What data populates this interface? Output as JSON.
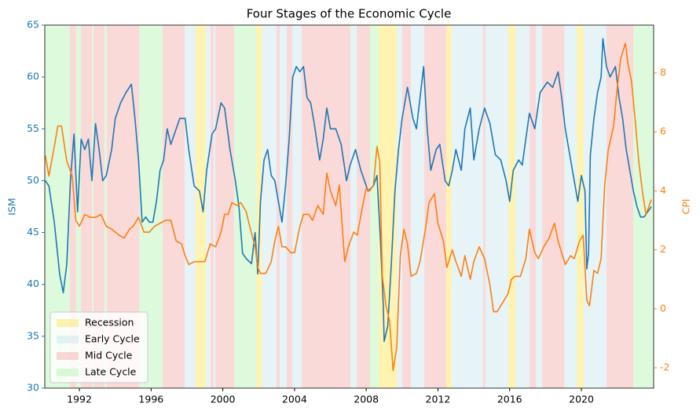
{
  "chart_data": {
    "type": "line",
    "title": "Four Stages of the Economic Cycle",
    "ylabel": "ISM",
    "y2label": "CPI",
    "xlim": [
      1990.07,
      2024.03
    ],
    "xticks": [
      1992,
      1996,
      2000,
      2004,
      2008,
      2012,
      2016,
      2020
    ],
    "ylim": [
      30,
      65
    ],
    "yticks": [
      30,
      35,
      40,
      45,
      50,
      55,
      60,
      65
    ],
    "y2lim": [
      -2.69,
      9.62
    ],
    "y2ticks": [
      -2,
      0,
      2,
      4,
      6,
      8
    ],
    "legend": "lower left",
    "shade_alpha": 0.3,
    "phases": [
      {
        "name": "Recession",
        "color": "#ffd700",
        "spans": [
          [
            1998.48,
            1999.05
          ],
          [
            2001.86,
            2002.17
          ],
          [
            2008.69,
            2009.7
          ],
          [
            2012.46,
            2012.77
          ],
          [
            2015.92,
            2016.32
          ],
          [
            2019.74,
            2020.13
          ]
        ]
      },
      {
        "name": "Early Cycle",
        "color": "#add8e6",
        "spans": [
          [
            1997.87,
            1998.48
          ],
          [
            1999.05,
            1999.32
          ],
          [
            1999.49,
            1999.58
          ],
          [
            2002.17,
            2003.0
          ],
          [
            2003.18,
            2003.57
          ],
          [
            2003.88,
            2004.4
          ],
          [
            2007.12,
            2007.47
          ],
          [
            2009.7,
            2010.01
          ],
          [
            2010.49,
            2011.24
          ],
          [
            2012.77,
            2014.52
          ],
          [
            2014.65,
            2015.92
          ],
          [
            2016.32,
            2017.11
          ],
          [
            2017.46,
            2017.81
          ],
          [
            2019.04,
            2019.74
          ],
          [
            2020.13,
            2021.4
          ]
        ]
      },
      {
        "name": "Mid Cycle",
        "color": "#f08080",
        "spans": [
          [
            1991.47,
            1991.82
          ],
          [
            1992.09,
            1992.7
          ],
          [
            1992.79,
            1993.4
          ],
          [
            1993.53,
            1995.33
          ],
          [
            1996.64,
            1997.87
          ],
          [
            1999.32,
            1999.49
          ],
          [
            1999.58,
            2000.63
          ],
          [
            2003.0,
            2003.18
          ],
          [
            2003.57,
            2003.88
          ],
          [
            2004.4,
            2007.12
          ],
          [
            2007.47,
            2008.21
          ],
          [
            2010.01,
            2010.49
          ],
          [
            2011.24,
            2012.46
          ],
          [
            2014.52,
            2014.65
          ],
          [
            2017.11,
            2017.46
          ],
          [
            2017.81,
            2019.04
          ],
          [
            2021.4,
            2022.89
          ]
        ]
      },
      {
        "name": "Late Cycle",
        "color": "#90ee90",
        "spans": [
          [
            1990.07,
            1991.47
          ],
          [
            1991.82,
            1992.09
          ],
          [
            1992.7,
            1992.79
          ],
          [
            1993.4,
            1993.53
          ],
          [
            1995.33,
            1996.64
          ],
          [
            2000.63,
            2001.86
          ],
          [
            2008.21,
            2008.69
          ],
          [
            2022.89,
            2024.03
          ]
        ]
      }
    ],
    "series": [
      {
        "name": "ISM",
        "color": "#1f77b4",
        "x": [
          1990.1,
          1990.3,
          1990.6,
          1990.9,
          1991.1,
          1991.3,
          1991.5,
          1991.7,
          1991.9,
          1992.1,
          1992.3,
          1992.5,
          1992.7,
          1992.9,
          1993.1,
          1993.3,
          1993.5,
          1993.8,
          1994.0,
          1994.3,
          1994.6,
          1994.9,
          1995.1,
          1995.3,
          1995.5,
          1995.7,
          1995.9,
          1996.1,
          1996.3,
          1996.5,
          1996.7,
          1996.9,
          1997.1,
          1997.4,
          1997.6,
          1997.9,
          1998.1,
          1998.4,
          1998.7,
          1998.9,
          1999.1,
          1999.4,
          1999.6,
          1999.9,
          2000.1,
          2000.4,
          2000.7,
          2000.9,
          2001.1,
          2001.3,
          2001.6,
          2001.8,
          2001.95,
          2002.1,
          2002.3,
          2002.5,
          2002.7,
          2002.9,
          2003.1,
          2003.3,
          2003.5,
          2003.7,
          2003.9,
          2004.1,
          2004.3,
          2004.5,
          2004.7,
          2004.9,
          2005.1,
          2005.4,
          2005.6,
          2005.8,
          2006.0,
          2006.3,
          2006.6,
          2006.9,
          2007.1,
          2007.4,
          2007.7,
          2007.9,
          2008.1,
          2008.4,
          2008.6,
          2008.8,
          2008.95,
          2009.0,
          2009.2,
          2009.4,
          2009.6,
          2009.8,
          2010.0,
          2010.3,
          2010.6,
          2010.8,
          2011.0,
          2011.2,
          2011.4,
          2011.6,
          2011.9,
          2012.1,
          2012.4,
          2012.6,
          2012.8,
          2013.0,
          2013.3,
          2013.5,
          2013.8,
          2014.0,
          2014.3,
          2014.6,
          2014.9,
          2015.2,
          2015.5,
          2015.8,
          2016.0,
          2016.2,
          2016.5,
          2016.7,
          2016.9,
          2017.1,
          2017.4,
          2017.7,
          2017.9,
          2018.1,
          2018.4,
          2018.7,
          2018.9,
          2019.1,
          2019.4,
          2019.6,
          2019.8,
          2020.0,
          2020.2,
          2020.3,
          2020.4,
          2020.5,
          2020.7,
          2020.9,
          2021.1,
          2021.2,
          2021.4,
          2021.6,
          2021.9,
          2022.1,
          2022.3,
          2022.5,
          2022.7,
          2022.9,
          2023.1,
          2023.3,
          2023.5,
          2023.7,
          2023.9
        ],
        "values": [
          50,
          49.5,
          46,
          41,
          39.2,
          42,
          50,
          54.5,
          47,
          54,
          53,
          54,
          50,
          55.5,
          53,
          50,
          50.5,
          53,
          56,
          57.5,
          58.5,
          59.3,
          56,
          52,
          46,
          46.5,
          46,
          46,
          48,
          51,
          52,
          55,
          53.5,
          55,
          56,
          56,
          53,
          49.5,
          49,
          47,
          51,
          54.5,
          55,
          57.5,
          57,
          53,
          50,
          47.5,
          43,
          42.5,
          42,
          45,
          41,
          48,
          52,
          53,
          50.5,
          50,
          48,
          46,
          49.5,
          54,
          60,
          61,
          60.5,
          61,
          58,
          57.5,
          55.5,
          52,
          54,
          57,
          55,
          55,
          53.5,
          50,
          51.5,
          53,
          51,
          50,
          49,
          49.5,
          50.5,
          44,
          38,
          34.5,
          36,
          42,
          49,
          53,
          56,
          59,
          56,
          55,
          58,
          61,
          55,
          51,
          53,
          53.5,
          50,
          49.5,
          51,
          53,
          51,
          55,
          57,
          52,
          55,
          57,
          55.5,
          52.5,
          52,
          50,
          48,
          51,
          52,
          51.5,
          54,
          56.5,
          55,
          58.5,
          59,
          59.5,
          59,
          60.5,
          58,
          55,
          52,
          50,
          48,
          50.5,
          49,
          41.5,
          43,
          52.5,
          56,
          58.5,
          60,
          63.7,
          61,
          60,
          61,
          58,
          56,
          53,
          51,
          49,
          47.5,
          46.5,
          46.5,
          47,
          47.5
        ]
      },
      {
        "name": "CPI",
        "color": "#ff7f0e",
        "axis": "y2",
        "x": [
          1990.1,
          1990.3,
          1990.6,
          1990.8,
          1991.0,
          1991.3,
          1991.6,
          1991.8,
          1992.0,
          1992.3,
          1992.6,
          1992.9,
          1993.2,
          1993.5,
          1993.8,
          1994.2,
          1994.5,
          1994.8,
          1995.0,
          1995.3,
          1995.6,
          1995.9,
          1996.2,
          1996.5,
          1996.8,
          1997.1,
          1997.4,
          1997.7,
          1997.9,
          1998.1,
          1998.4,
          1998.7,
          1999.0,
          1999.3,
          1999.6,
          1999.9,
          2000.1,
          2000.3,
          2000.5,
          2000.8,
          2001.0,
          2001.3,
          2001.5,
          2001.8,
          2001.95,
          2002.1,
          2002.4,
          2002.7,
          2002.9,
          2003.1,
          2003.3,
          2003.5,
          2003.8,
          2004.0,
          2004.3,
          2004.5,
          2004.8,
          2005.0,
          2005.3,
          2005.6,
          2005.8,
          2006.0,
          2006.3,
          2006.5,
          2006.8,
          2007.0,
          2007.3,
          2007.5,
          2007.8,
          2008.0,
          2008.2,
          2008.4,
          2008.6,
          2008.75,
          2008.9,
          2009.1,
          2009.3,
          2009.5,
          2009.7,
          2009.9,
          2010.1,
          2010.3,
          2010.5,
          2010.8,
          2011.0,
          2011.3,
          2011.5,
          2011.8,
          2012.0,
          2012.3,
          2012.5,
          2012.8,
          2013.0,
          2013.3,
          2013.5,
          2013.8,
          2014.0,
          2014.3,
          2014.6,
          2014.9,
          2015.1,
          2015.3,
          2015.6,
          2015.9,
          2016.1,
          2016.3,
          2016.6,
          2016.9,
          2017.1,
          2017.4,
          2017.6,
          2017.9,
          2018.2,
          2018.5,
          2018.7,
          2018.9,
          2019.1,
          2019.4,
          2019.6,
          2019.9,
          2020.1,
          2020.3,
          2020.45,
          2020.7,
          2020.9,
          2021.1,
          2021.3,
          2021.5,
          2021.8,
          2022.0,
          2022.2,
          2022.45,
          2022.6,
          2022.8,
          2023.0,
          2023.2,
          2023.4,
          2023.6,
          2023.9
        ],
        "values": [
          5.2,
          4.5,
          5.5,
          6.2,
          6.2,
          5,
          4.5,
          3,
          2.8,
          3.2,
          3.1,
          3.1,
          3.2,
          2.8,
          2.7,
          2.5,
          2.4,
          2.7,
          2.8,
          3.1,
          2.6,
          2.6,
          2.8,
          2.9,
          3.0,
          3.0,
          2.3,
          2.2,
          1.8,
          1.5,
          1.6,
          1.6,
          1.6,
          2.2,
          2.1,
          2.6,
          3.2,
          3.2,
          3.6,
          3.5,
          3.6,
          3.3,
          2.8,
          2.1,
          1.4,
          1.2,
          1.2,
          1.6,
          2.3,
          2.8,
          2.1,
          2.1,
          1.9,
          1.9,
          2.8,
          3.2,
          3.2,
          3.0,
          3.5,
          3.2,
          4.6,
          4.0,
          3.5,
          4.2,
          1.6,
          2.1,
          2.6,
          2.5,
          3.5,
          4.1,
          4.0,
          4.2,
          5.5,
          5.0,
          1.1,
          0.1,
          -0.4,
          -2.1,
          -1.3,
          1.8,
          2.7,
          2.2,
          1.1,
          1.2,
          1.6,
          2.7,
          3.6,
          3.9,
          2.9,
          2.3,
          1.4,
          2.0,
          1.6,
          1.1,
          1.8,
          1.0,
          1.6,
          2.1,
          1.7,
          0.8,
          -0.1,
          -0.1,
          0.2,
          0.5,
          1.0,
          1.1,
          1.1,
          1.7,
          2.7,
          1.9,
          1.7,
          2.1,
          2.4,
          2.9,
          2.3,
          1.9,
          1.5,
          1.8,
          1.7,
          2.3,
          2.5,
          0.3,
          0.1,
          1.3,
          1.2,
          1.7,
          4.2,
          5.4,
          6.2,
          7.5,
          8.5,
          9.0,
          8.3,
          7.7,
          6.4,
          5.0,
          4.0,
          3.2,
          3.7
        ]
      }
    ]
  }
}
